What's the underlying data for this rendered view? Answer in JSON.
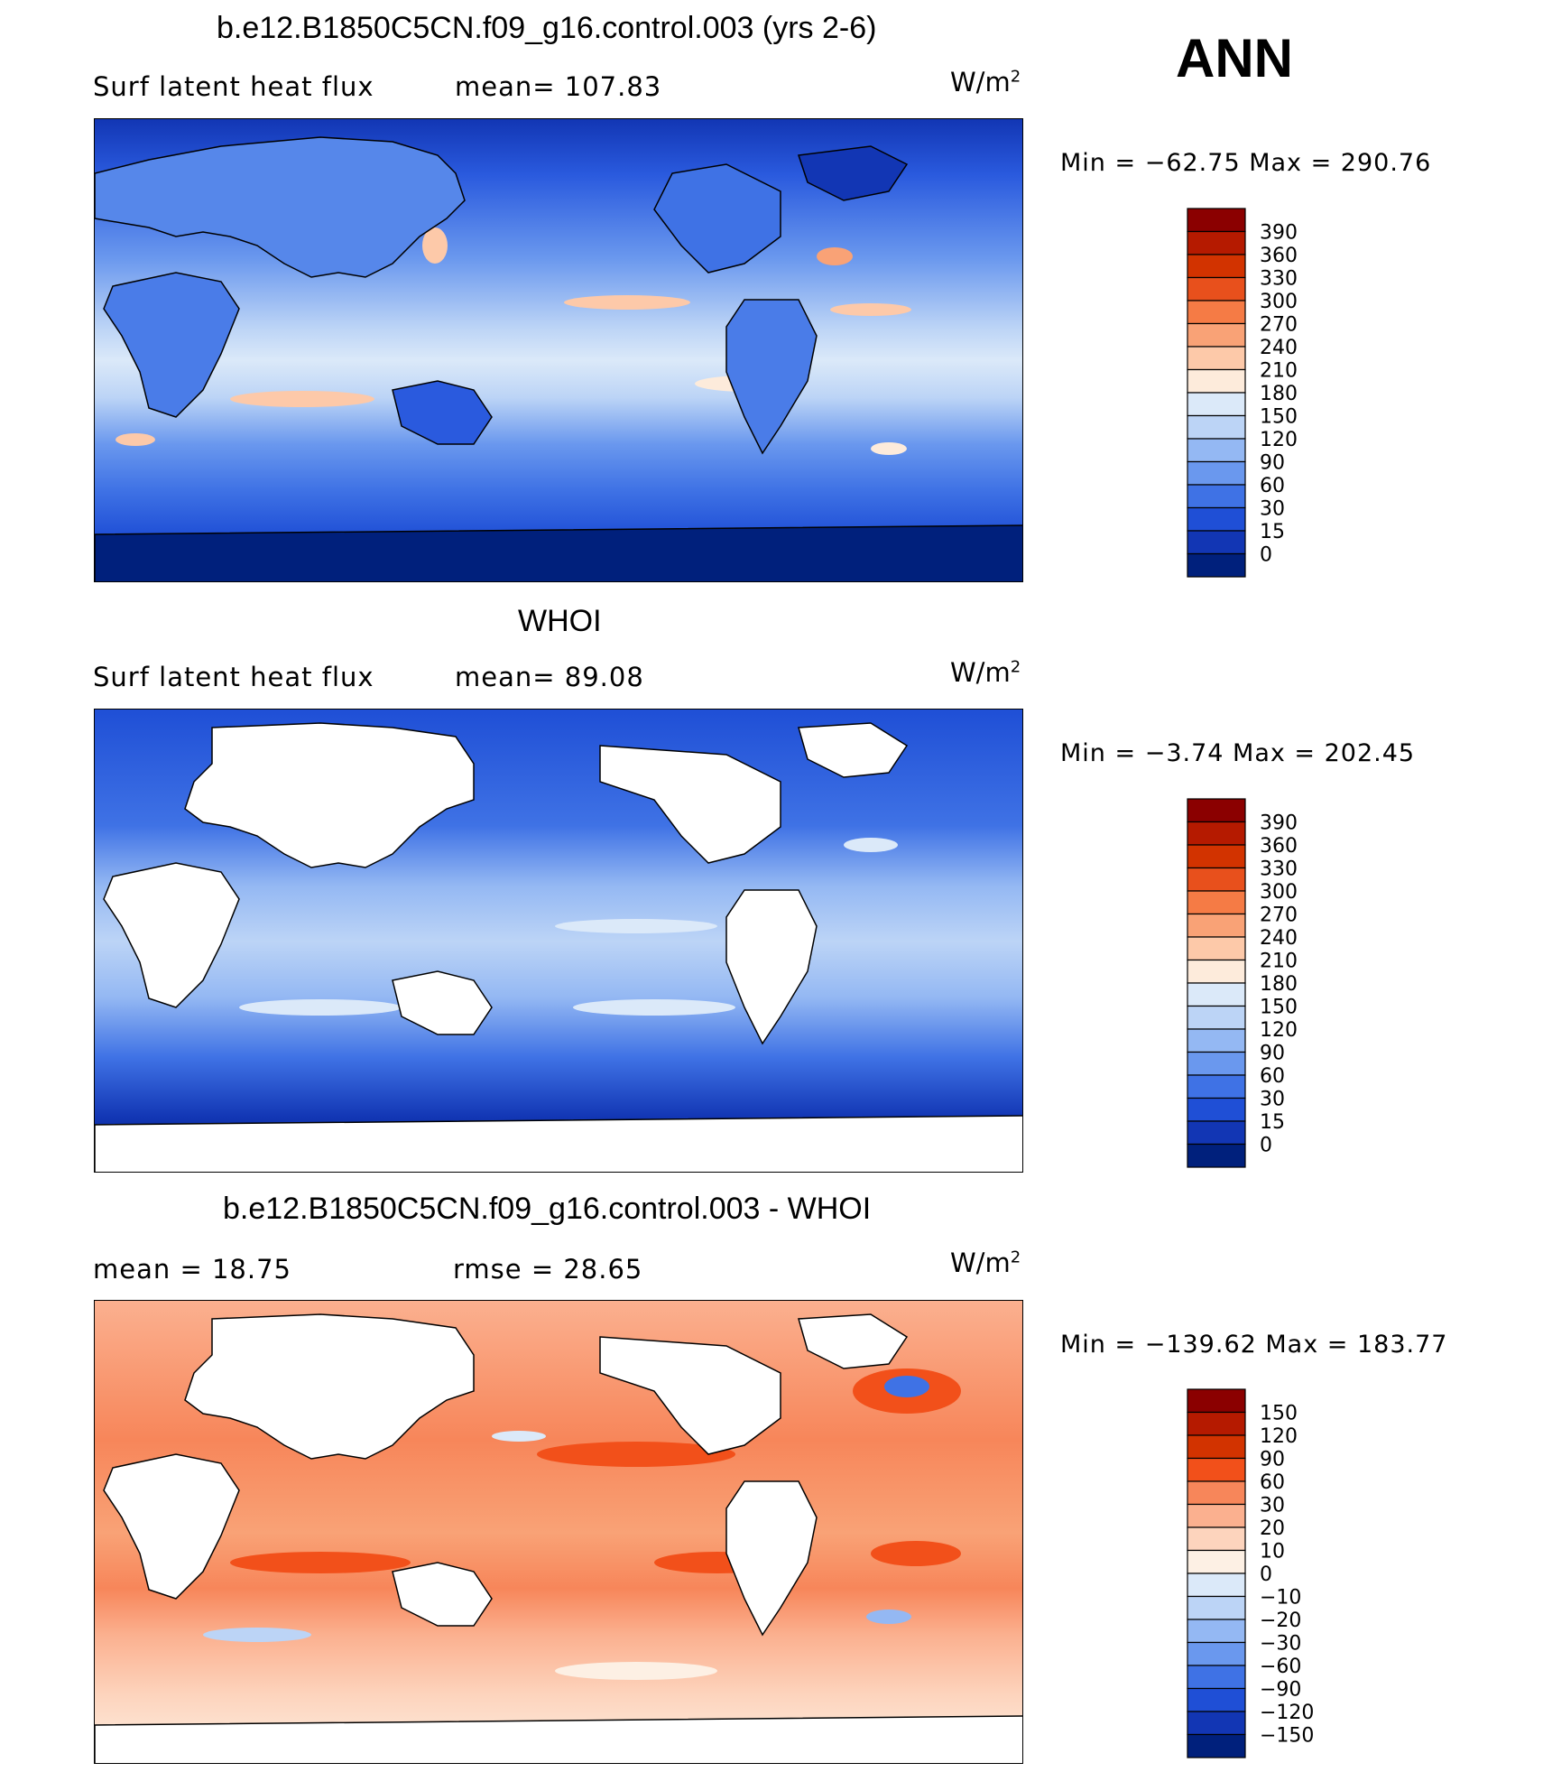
{
  "season": "ANN",
  "units_base": "W/m",
  "units_exp": "2",
  "panels": [
    {
      "title": "b.e12.B1850C5CN.f09_g16.control.003 (yrs 2-6)",
      "left_text": "Surf  latent  heat  flux",
      "right_text": "mean=  107.83",
      "minmax": "Min  =  −62.75  Max  =  290.76",
      "colorbar": [
        "390",
        "360",
        "330",
        "300",
        "270",
        "240",
        "210",
        "180",
        "150",
        "120",
        "90",
        "60",
        "30",
        "15",
        "0"
      ],
      "colors": [
        "#8b0000",
        "#b51a00",
        "#d23300",
        "#e8501c",
        "#f57b45",
        "#f9a276",
        "#fdc9a9",
        "#fdebdb",
        "#dbe9f9",
        "#bcd4f6",
        "#94b8f3",
        "#6a98ee",
        "#3f72e5",
        "#1f4fd6",
        "#1236b4",
        "#00207c"
      ]
    },
    {
      "title": "WHOI",
      "left_text": "Surf  latent  heat  flux",
      "right_text": "mean=   89.08",
      "minmax": "Min  =    −3.74  Max  =  202.45",
      "colorbar": [
        "390",
        "360",
        "330",
        "300",
        "270",
        "240",
        "210",
        "180",
        "150",
        "120",
        "90",
        "60",
        "30",
        "15",
        "0"
      ],
      "colors": [
        "#8b0000",
        "#b51a00",
        "#d23300",
        "#e8501c",
        "#f57b45",
        "#f9a276",
        "#fdc9a9",
        "#fdebdb",
        "#dbe9f9",
        "#bcd4f6",
        "#94b8f3",
        "#6a98ee",
        "#3f72e5",
        "#1f4fd6",
        "#1236b4",
        "#00207c"
      ]
    },
    {
      "title": "b.e12.B1850C5CN.f09_g16.control.003 - WHOI",
      "left_text": "mean  =     18.75",
      "right_text": "rmse  =     28.65",
      "minmax": "Min  =  −139.62  Max  =  183.77",
      "colorbar": [
        "150",
        "120",
        "90",
        "60",
        "30",
        "20",
        "10",
        "0",
        "−10",
        "−20",
        "−30",
        "−60",
        "−90",
        "−120",
        "−150"
      ],
      "colors": [
        "#8b0000",
        "#b51a00",
        "#d23300",
        "#f2501a",
        "#f7865a",
        "#fbb08f",
        "#fdd4bd",
        "#fdf0e4",
        "#dbe9f9",
        "#bcd4f6",
        "#94b8f3",
        "#6a98ee",
        "#3f72e5",
        "#1f4fd6",
        "#1236b4",
        "#00207c"
      ]
    }
  ],
  "chart_data": [
    {
      "type": "heatmap",
      "title": "b.e12.B1850C5CN.f09_g16.control.003 (yrs 2-6)",
      "subtitle": "Surf latent heat flux",
      "mean": 107.83,
      "min": -62.75,
      "max": 290.76,
      "contour_levels": [
        0,
        15,
        30,
        60,
        90,
        120,
        150,
        180,
        210,
        240,
        270,
        300,
        330,
        360,
        390
      ]
    },
    {
      "type": "heatmap",
      "title": "WHOI",
      "subtitle": "Surf latent heat flux",
      "mean": 89.08,
      "min": -3.74,
      "max": 202.45,
      "contour_levels": [
        0,
        15,
        30,
        60,
        90,
        120,
        150,
        180,
        210,
        240,
        270,
        300,
        330,
        360,
        390
      ]
    },
    {
      "type": "heatmap",
      "title": "b.e12.B1850C5CN.f09_g16.control.003 - WHOI",
      "mean": 18.75,
      "rmse": 28.65,
      "min": -139.62,
      "max": 183.77,
      "contour_levels": [
        -150,
        -120,
        -90,
        -60,
        -30,
        -20,
        -10,
        0,
        10,
        20,
        30,
        60,
        90,
        120,
        150
      ]
    }
  ]
}
